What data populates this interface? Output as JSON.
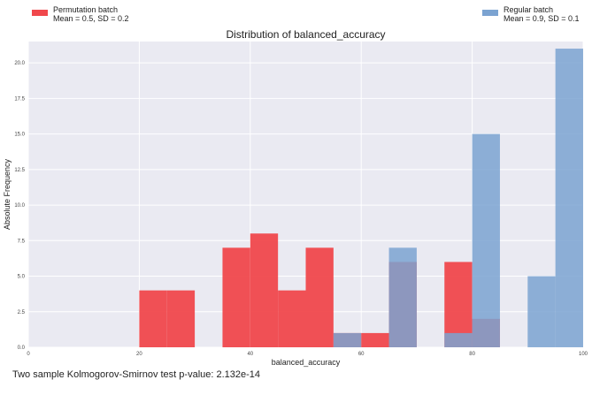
{
  "chart_data": {
    "type": "bar",
    "title": "Distribution of balanced_accuracy",
    "xlabel": "balanced_accuracy",
    "ylabel": "Absolute Frequency",
    "xlim": [
      0,
      100
    ],
    "ylim": [
      0,
      21.5
    ],
    "xticks": [
      "0",
      "20",
      "40",
      "60",
      "80",
      "100"
    ],
    "yticks": [
      "0.0",
      "2.5",
      "5.0",
      "7.5",
      "10.0",
      "12.5",
      "15.0",
      "17.5",
      "20.0"
    ],
    "grid": true,
    "legend_position": "top",
    "series": [
      {
        "name": "Permutation batch",
        "stats": "Mean = 0.5, SD = 0.2",
        "color": "#f0484c",
        "bins": [
          {
            "x0": 20,
            "x1": 25,
            "count": 4
          },
          {
            "x0": 25,
            "x1": 30,
            "count": 4
          },
          {
            "x0": 35,
            "x1": 40,
            "count": 7
          },
          {
            "x0": 40,
            "x1": 45,
            "count": 8
          },
          {
            "x0": 45,
            "x1": 50,
            "count": 4
          },
          {
            "x0": 50,
            "x1": 55,
            "count": 7
          },
          {
            "x0": 55,
            "x1": 60,
            "count": 1
          },
          {
            "x0": 60,
            "x1": 65,
            "count": 1
          },
          {
            "x0": 65,
            "x1": 70,
            "count": 6
          },
          {
            "x0": 75,
            "x1": 80,
            "count": 6
          },
          {
            "x0": 80,
            "x1": 85,
            "count": 2
          }
        ]
      },
      {
        "name": "Regular batch",
        "stats": "Mean = 0.9, SD = 0.1",
        "color": "#7ba3d1",
        "bins": [
          {
            "x0": 55,
            "x1": 60,
            "count": 1
          },
          {
            "x0": 65,
            "x1": 70,
            "count": 7
          },
          {
            "x0": 75,
            "x1": 80,
            "count": 1
          },
          {
            "x0": 80,
            "x1": 85,
            "count": 15
          },
          {
            "x0": 90,
            "x1": 95,
            "count": 5
          },
          {
            "x0": 95,
            "x1": 100,
            "count": 21
          }
        ]
      }
    ]
  },
  "footer": {
    "text": "Two sample Kolmogorov-Smirnov test p-value: 2.132e-14"
  }
}
